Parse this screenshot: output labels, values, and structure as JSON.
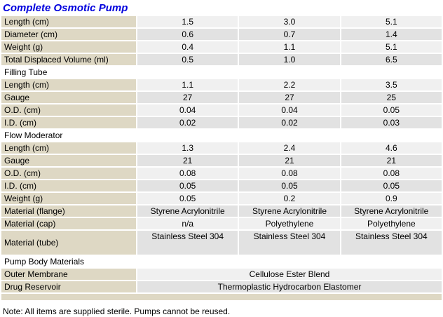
{
  "page": {
    "title": "Complete Osmotic Pump",
    "note": "Note: All items are supplied sterile. Pumps cannot be reused."
  },
  "colors": {
    "title_blue": "#0000dd",
    "label_beige": "#ded8c4",
    "row_light": "#f0f0f0",
    "row_dark": "#e2e2e2"
  },
  "table": {
    "rows": [
      {
        "type": "data",
        "shade": "light",
        "label": "Length (cm)",
        "values": [
          "1.5",
          "3.0",
          "5.1"
        ]
      },
      {
        "type": "data",
        "shade": "dark",
        "label": "Diameter (cm)",
        "values": [
          "0.6",
          "0.7",
          "1.4"
        ]
      },
      {
        "type": "data",
        "shade": "light",
        "label": "Weight (g)",
        "values": [
          "0.4",
          "1.1",
          "5.1"
        ]
      },
      {
        "type": "data",
        "shade": "dark",
        "label": "Total Displaced Volume (ml)",
        "values": [
          "0.5",
          "1.0",
          "6.5"
        ]
      },
      {
        "type": "section",
        "label": "Filling Tube"
      },
      {
        "type": "data",
        "shade": "light",
        "label": "Length (cm)",
        "values": [
          "1.1",
          "2.2",
          "3.5"
        ]
      },
      {
        "type": "data",
        "shade": "dark",
        "label": "Gauge",
        "values": [
          "27",
          "27",
          "25"
        ]
      },
      {
        "type": "data",
        "shade": "light",
        "label": "O.D. (cm)",
        "values": [
          "0.04",
          "0.04",
          "0.05"
        ]
      },
      {
        "type": "data",
        "shade": "dark",
        "label": "I.D. (cm)",
        "values": [
          "0.02",
          "0.02",
          "0.03"
        ]
      },
      {
        "type": "section",
        "label": "Flow Moderator"
      },
      {
        "type": "data",
        "shade": "light",
        "label": "Length (cm)",
        "values": [
          "1.3",
          "2.4",
          "4.6"
        ]
      },
      {
        "type": "data",
        "shade": "dark",
        "label": "Gauge",
        "values": [
          "21",
          "21",
          "21"
        ]
      },
      {
        "type": "data",
        "shade": "light",
        "label": "O.D. (cm)",
        "values": [
          "0.08",
          "0.08",
          "0.08"
        ]
      },
      {
        "type": "data",
        "shade": "dark",
        "label": "I.D. (cm)",
        "values": [
          "0.05",
          "0.05",
          "0.05"
        ]
      },
      {
        "type": "data",
        "shade": "light",
        "label": "Weight (g)",
        "values": [
          "0.05",
          "0.2",
          "0.9"
        ]
      },
      {
        "type": "data",
        "shade": "dark",
        "label": "Material (flange)",
        "values": [
          "Styrene Acrylonitrile",
          "Styrene Acrylonitrile",
          "Styrene Acrylonitrile"
        ]
      },
      {
        "type": "data",
        "shade": "light",
        "label": "Material (cap)",
        "values": [
          "n/a",
          "Polyethylene",
          "Polyethylene"
        ]
      },
      {
        "type": "data",
        "shade": "dark",
        "tall": true,
        "label": "Material (tube)",
        "values": [
          "Stainless Steel 304",
          "Stainless Steel 304",
          "Stainless Steel 304"
        ]
      },
      {
        "type": "section",
        "label": "Pump Body Materials"
      },
      {
        "type": "span",
        "shade": "light",
        "label": "Outer Membrane",
        "value": "Cellulose Ester Blend"
      },
      {
        "type": "span",
        "shade": "dark",
        "label": "Drug Reservoir",
        "value": "Thermoplastic Hydrocarbon Elastomer"
      },
      {
        "type": "filler"
      }
    ]
  }
}
